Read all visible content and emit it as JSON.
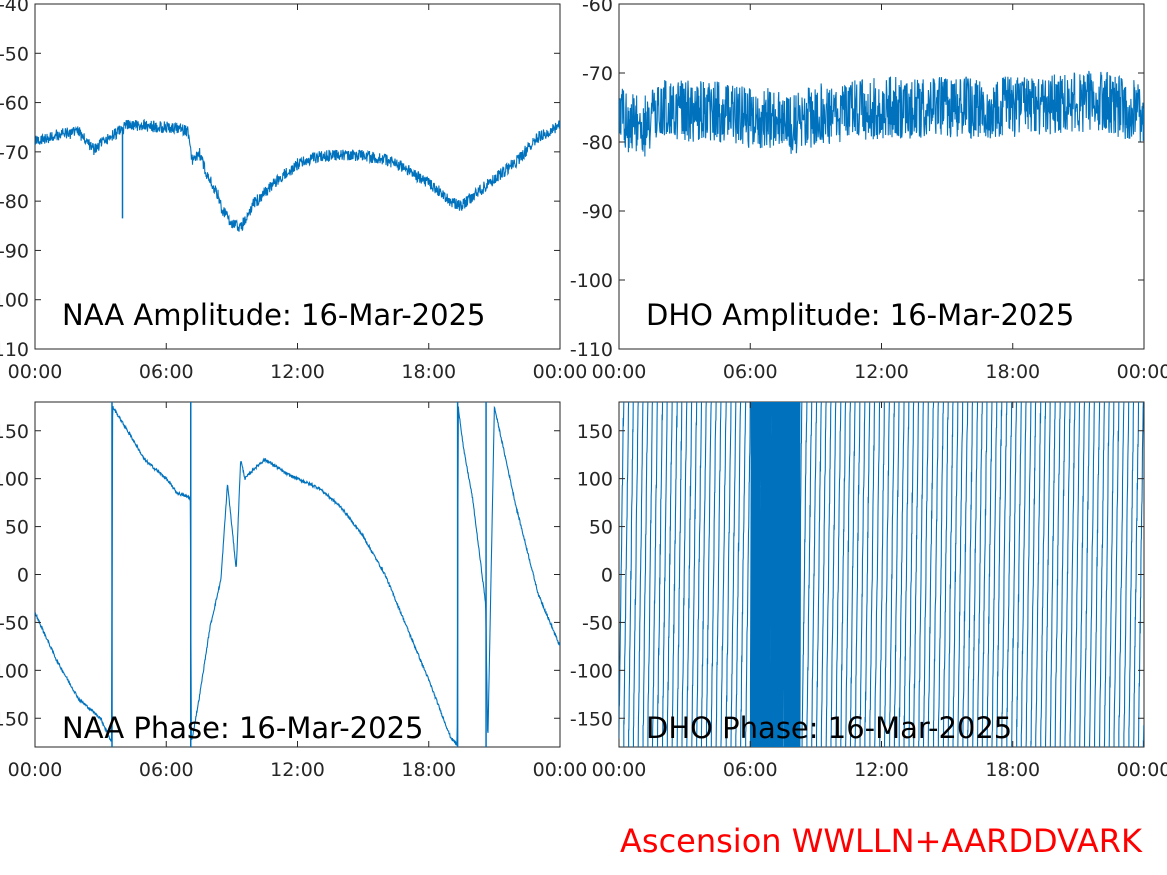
{
  "footer": {
    "text": "Ascension WWLLN+AARDDVARK",
    "color": "#ff0000"
  },
  "line_color": "#0072bd",
  "chart_data": [
    {
      "type": "line",
      "title": "NAA Amplitude: 16-Mar-2025",
      "xlabel": "",
      "ylabel": "",
      "xlim": [
        0,
        24
      ],
      "ylim": [
        -110,
        -40
      ],
      "x_ticks": [
        "00:00",
        "06:00",
        "12:00",
        "18:00",
        "00:00"
      ],
      "y_ticks": [
        "-40",
        "-50",
        "-60",
        "-70",
        "-80",
        "-90",
        "-100",
        "-110"
      ],
      "series": [
        {
          "x": [
            0,
            1,
            2,
            2.7,
            3.4,
            4.0,
            4.2,
            6.0,
            6.8,
            7.0,
            7.2,
            7.5,
            7.9,
            8.3,
            8.6,
            8.9,
            9.4,
            10.0,
            11.0,
            12.0,
            13.0,
            14.0,
            15.0,
            16.0,
            17.0,
            18.0,
            18.5,
            19.0,
            19.5,
            20.0,
            21.0,
            22.0,
            23.0,
            24.0
          ],
          "y": [
            -68,
            -66.5,
            -66,
            -69.5,
            -67,
            -65.5,
            -64.5,
            -65,
            -65.5,
            -66,
            -72,
            -70,
            -75,
            -78,
            -82,
            -84,
            -85.5,
            -80.5,
            -76,
            -72.5,
            -71,
            -70.5,
            -70.8,
            -71.5,
            -73.5,
            -76.5,
            -78,
            -80,
            -81,
            -79,
            -75.5,
            -72,
            -67,
            -64.5
          ]
        }
      ],
      "noise_band": 1.2,
      "spikes": [
        {
          "x": 4.0,
          "y_from": -65,
          "y_to": -83.5
        }
      ]
    },
    {
      "type": "line",
      "title": "DHO Amplitude: 16-Mar-2025",
      "xlabel": "",
      "ylabel": "",
      "xlim": [
        0,
        24
      ],
      "ylim": [
        -110,
        -60
      ],
      "x_ticks": [
        "00:00",
        "06:00",
        "12:00",
        "18:00",
        "00:00"
      ],
      "y_ticks": [
        "-60",
        "-70",
        "-80",
        "-90",
        "-100",
        "-110"
      ],
      "series": [
        {
          "x": [
            0,
            1,
            1.5,
            2,
            4,
            5,
            6,
            7,
            8,
            9,
            12,
            15,
            18,
            20,
            22,
            24
          ],
          "y": [
            -76.5,
            -78,
            -77,
            -75.5,
            -75.5,
            -76,
            -76.5,
            -76.5,
            -77.5,
            -76,
            -75,
            -75,
            -75,
            -74.5,
            -74,
            -76
          ]
        }
      ],
      "noise_band": 4.5
    },
    {
      "type": "line",
      "title": "NAA Phase: 16-Mar-2025",
      "xlabel": "",
      "ylabel": "",
      "xlim": [
        0,
        24
      ],
      "ylim": [
        -180,
        180
      ],
      "x_ticks": [
        "00:00",
        "06:00",
        "12:00",
        "18:00",
        "00:00"
      ],
      "y_ticks": [
        "150",
        "100",
        "50",
        "0",
        "-50",
        "-100",
        "-150"
      ],
      "series": [
        {
          "x": [
            0,
            1,
            2,
            3,
            3.5,
            3.55,
            4.5,
            5,
            6,
            6.5,
            7.1,
            7.15,
            7.5,
            8,
            8,
            8.5,
            8.8,
            9.0,
            9.2,
            9.4,
            9.6,
            10,
            10.5,
            11,
            11.5,
            12,
            13,
            14,
            15,
            16,
            17,
            18,
            19,
            19.3,
            19.35,
            19.6,
            20,
            20.6,
            20.7,
            21,
            22,
            23,
            24
          ],
          "y": [
            -40,
            -90,
            -130,
            -150,
            -175,
            175,
            140,
            120,
            100,
            85,
            80,
            -175,
            -130,
            -55,
            -55,
            -5,
            95,
            50,
            5,
            120,
            100,
            110,
            120,
            113,
            105,
            100,
            90,
            70,
            40,
            0,
            -55,
            -110,
            -170,
            -178,
            175,
            130,
            80,
            -30,
            -175,
            175,
            70,
            -20,
            -75
          ]
        }
      ],
      "noise_band": 1.5,
      "spikes": [
        {
          "x": 3.52,
          "y_from": -180,
          "y_to": 180
        },
        {
          "x": 7.12,
          "y_from": -180,
          "y_to": 180
        },
        {
          "x": 19.32,
          "y_from": -180,
          "y_to": 180
        },
        {
          "x": 20.62,
          "y_from": -180,
          "y_to": 180
        }
      ]
    },
    {
      "type": "line",
      "title": "DHO Phase: 16-Mar-2025",
      "xlabel": "",
      "ylabel": "",
      "xlim": [
        0,
        24
      ],
      "ylim": [
        -180,
        180
      ],
      "x_ticks": [
        "00:00",
        "06:00",
        "12:00",
        "18:00",
        "00:00"
      ],
      "y_ticks": [
        "150",
        "100",
        "50",
        "0",
        "-50",
        "-100",
        "-150"
      ],
      "series": [],
      "wrapping_phase": {
        "cycles_per_hour": 4.5,
        "dense_interval": [
          6.0,
          8.3
        ],
        "dense_cycles_per_hour": 22
      }
    }
  ]
}
